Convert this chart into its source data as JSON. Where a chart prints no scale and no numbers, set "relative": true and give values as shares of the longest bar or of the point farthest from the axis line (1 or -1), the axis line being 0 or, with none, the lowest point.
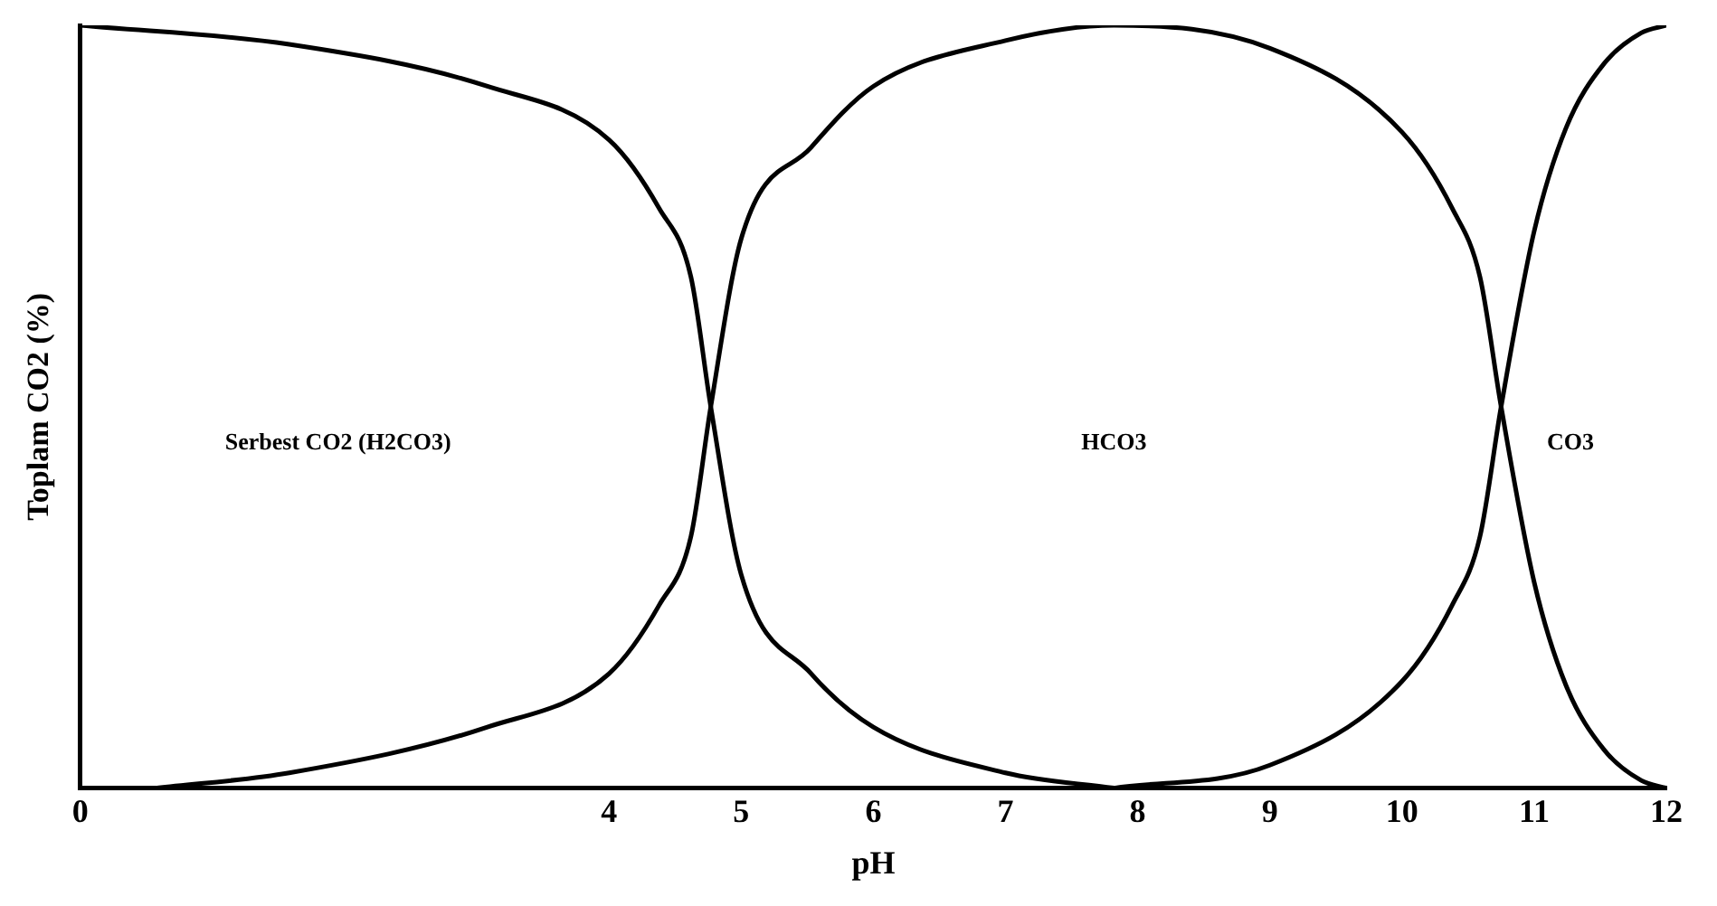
{
  "chart_data": {
    "type": "line",
    "xlabel": "pH",
    "ylabel": "Toplam CO2 (%)",
    "relative": true,
    "xlim": [
      0,
      12
    ],
    "xticks": [
      0,
      4,
      5,
      6,
      7,
      8,
      9,
      10,
      11,
      12
    ],
    "grid": false,
    "legend": false,
    "marker": "none",
    "line_style": "solid",
    "series": [
      {
        "color": "#000000",
        "x": [
          0,
          1.58,
          3.08,
          4,
          4.38,
          4.62,
          4.77,
          5,
          5.53,
          6,
          7,
          7.82
        ],
        "values": [
          1,
          0.975,
          0.92,
          0.85,
          0.76,
          0.67,
          0.5,
          0.28,
          0.15,
          0.08,
          0.02,
          0
        ]
      },
      {
        "color": "#000000",
        "x": [
          0.58,
          1.58,
          3.08,
          4,
          4.38,
          4.62,
          4.77,
          5,
          5.53,
          6,
          7,
          7.82,
          9,
          10,
          10.38,
          10.59,
          10.75,
          11,
          11.24,
          11.53,
          11.81,
          12
        ],
        "values": [
          0,
          0.02,
          0.08,
          0.15,
          0.24,
          0.33,
          0.5,
          0.72,
          0.84,
          0.92,
          0.98,
          1,
          0.97,
          0.86,
          0.76,
          0.67,
          0.5,
          0.27,
          0.135,
          0.05,
          0.01,
          0
        ]
      },
      {
        "color": "#000000",
        "x": [
          7.82,
          9,
          10,
          10.38,
          10.59,
          10.75,
          11,
          11.24,
          11.53,
          11.81,
          12
        ],
        "values": [
          0,
          0.03,
          0.14,
          0.24,
          0.33,
          0.5,
          0.73,
          0.865,
          0.95,
          0.99,
          1
        ]
      }
    ],
    "annotations": [
      "Serbest CO2 (H2CO3)",
      "HCO3",
      "CO3"
    ]
  }
}
